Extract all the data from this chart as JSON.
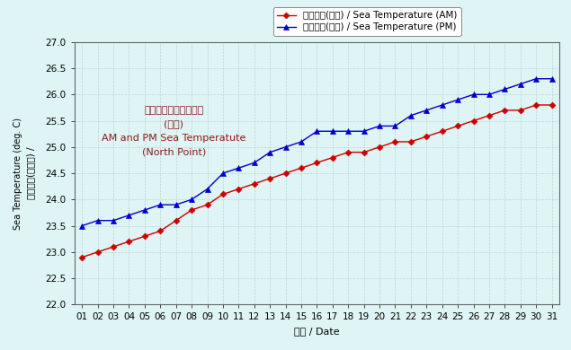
{
  "days": [
    1,
    2,
    3,
    4,
    5,
    6,
    7,
    8,
    9,
    10,
    11,
    12,
    13,
    14,
    15,
    16,
    17,
    18,
    19,
    20,
    21,
    22,
    23,
    24,
    25,
    26,
    27,
    28,
    29,
    30,
    31
  ],
  "am_temps": [
    22.9,
    23.0,
    23.1,
    23.2,
    23.3,
    23.4,
    23.6,
    23.8,
    23.9,
    24.1,
    24.2,
    24.3,
    24.4,
    24.5,
    24.6,
    24.7,
    24.8,
    24.9,
    24.9,
    25.0,
    25.1,
    25.1,
    25.2,
    25.3,
    25.4,
    25.5,
    25.6,
    25.7,
    25.7,
    25.8,
    25.8
  ],
  "pm_temps": [
    23.5,
    23.6,
    23.6,
    23.7,
    23.8,
    23.9,
    23.9,
    24.0,
    24.2,
    24.5,
    24.6,
    24.7,
    24.9,
    25.0,
    25.1,
    25.3,
    25.3,
    25.3,
    25.3,
    25.4,
    25.4,
    25.6,
    25.7,
    25.8,
    25.9,
    26.0,
    26.0,
    26.1,
    26.2,
    26.3,
    26.3
  ],
  "am_color": "#cc0000",
  "pm_color": "#0000cc",
  "ylim": [
    22.0,
    27.0
  ],
  "yticks": [
    22.0,
    22.5,
    23.0,
    23.5,
    24.0,
    24.5,
    25.0,
    25.5,
    26.0,
    26.5,
    27.0
  ],
  "xlabel": "日期 / Date",
  "ylabel_cn": "海水温度(攝氏度) /",
  "ylabel_en": "Sea Temperature (deg. C)",
  "legend_am": "海水温度(上午) / Sea Temperature (AM)",
  "legend_pm": "海水温度(下午) / Sea Temperature (PM)",
  "annotation_line1": "上午及下午的海水温度",
  "annotation_line2": "(北角)",
  "annotation_line3": "AM and PM Sea Temperatute",
  "annotation_line4": "(North Point)",
  "bg_color": "#dff4f4",
  "grid_color": "#b0cece",
  "annotation_color": "#8b1a1a",
  "tick_fontsize": 7.5,
  "label_fontsize": 8,
  "legend_fontsize": 7.5
}
